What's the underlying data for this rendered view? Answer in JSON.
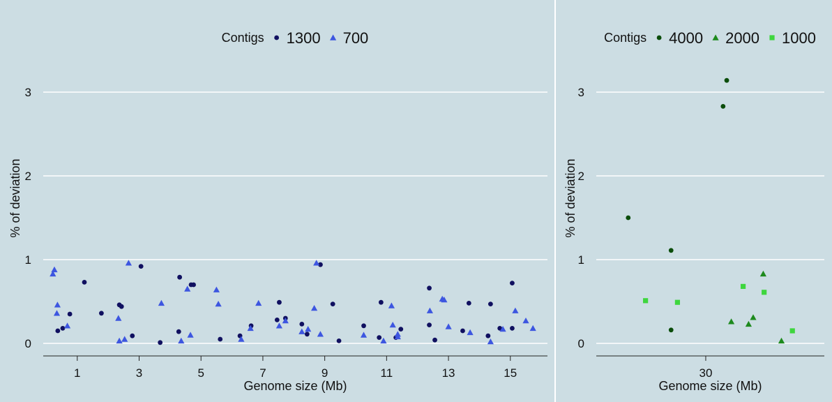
{
  "chart_data": [
    {
      "type": "scatter",
      "xlabel": "Genome size (Mb)",
      "ylabel": "% of deviation",
      "legend_title": "Contigs",
      "legend_position": "top-center",
      "grid": "horizontal",
      "xlim": [
        -0.1,
        16.2
      ],
      "ylim": [
        -0.15,
        3.45
      ],
      "xticks": [
        1,
        3,
        5,
        7,
        9,
        11,
        13,
        15
      ],
      "yticks": [
        0,
        1,
        2,
        3
      ],
      "series": [
        {
          "name": "1300",
          "marker": "circle",
          "color": "#101060",
          "points": [
            [
              0.37,
              0.15
            ],
            [
              0.53,
              0.18
            ],
            [
              0.76,
              0.35
            ],
            [
              1.23,
              0.73
            ],
            [
              1.78,
              0.36
            ],
            [
              2.36,
              0.46
            ],
            [
              2.43,
              0.44
            ],
            [
              2.78,
              0.09
            ],
            [
              3.06,
              0.92
            ],
            [
              3.68,
              0.01
            ],
            [
              4.28,
              0.14
            ],
            [
              4.31,
              0.79
            ],
            [
              4.68,
              0.7
            ],
            [
              4.76,
              0.7
            ],
            [
              5.62,
              0.05
            ],
            [
              6.26,
              0.09
            ],
            [
              6.62,
              0.21
            ],
            [
              7.53,
              0.49
            ],
            [
              7.46,
              0.28
            ],
            [
              7.73,
              0.3
            ],
            [
              8.26,
              0.23
            ],
            [
              8.43,
              0.11
            ],
            [
              8.86,
              0.94
            ],
            [
              9.26,
              0.47
            ],
            [
              9.46,
              0.03
            ],
            [
              10.26,
              0.21
            ],
            [
              10.76,
              0.07
            ],
            [
              10.82,
              0.49
            ],
            [
              11.3,
              0.07
            ],
            [
              11.46,
              0.17
            ],
            [
              12.38,
              0.66
            ],
            [
              12.38,
              0.22
            ],
            [
              12.56,
              0.04
            ],
            [
              13.46,
              0.15
            ],
            [
              13.66,
              0.48
            ],
            [
              14.28,
              0.09
            ],
            [
              14.36,
              0.47
            ],
            [
              14.66,
              0.18
            ],
            [
              15.06,
              0.72
            ],
            [
              15.06,
              0.18
            ]
          ]
        },
        {
          "name": "700",
          "marker": "triangle",
          "color": "#3d56e0",
          "points": [
            [
              0.21,
              0.83
            ],
            [
              0.26,
              0.88
            ],
            [
              0.34,
              0.36
            ],
            [
              0.36,
              0.46
            ],
            [
              0.68,
              0.21
            ],
            [
              2.33,
              0.3
            ],
            [
              2.36,
              0.03
            ],
            [
              2.53,
              0.05
            ],
            [
              2.66,
              0.96
            ],
            [
              3.72,
              0.48
            ],
            [
              4.36,
              0.03
            ],
            [
              4.56,
              0.65
            ],
            [
              4.66,
              0.1
            ],
            [
              5.5,
              0.64
            ],
            [
              5.56,
              0.47
            ],
            [
              6.3,
              0.05
            ],
            [
              6.6,
              0.18
            ],
            [
              6.86,
              0.48
            ],
            [
              7.53,
              0.21
            ],
            [
              7.73,
              0.27
            ],
            [
              8.26,
              0.14
            ],
            [
              8.46,
              0.17
            ],
            [
              8.66,
              0.42
            ],
            [
              8.73,
              0.96
            ],
            [
              8.86,
              0.11
            ],
            [
              10.26,
              0.1
            ],
            [
              10.9,
              0.03
            ],
            [
              11.2,
              0.22
            ],
            [
              11.16,
              0.45
            ],
            [
              11.36,
              0.08
            ],
            [
              11.36,
              0.11
            ],
            [
              12.4,
              0.39
            ],
            [
              12.8,
              0.53
            ],
            [
              12.86,
              0.52
            ],
            [
              13.0,
              0.2
            ],
            [
              13.7,
              0.13
            ],
            [
              14.36,
              0.02
            ],
            [
              14.76,
              0.17
            ],
            [
              15.16,
              0.39
            ],
            [
              15.5,
              0.27
            ],
            [
              15.73,
              0.18
            ]
          ]
        }
      ]
    },
    {
      "type": "scatter",
      "xlabel": "Genome size (Mb)",
      "ylabel": "% of deviation",
      "legend_title": "Contigs",
      "legend_position": "top-center",
      "grid": "horizontal",
      "xlim": [
        18.0,
        43.0
      ],
      "ylim": [
        -0.15,
        3.45
      ],
      "xticks": [
        30
      ],
      "yticks": [
        0,
        1,
        2,
        3
      ],
      "series": [
        {
          "name": "4000",
          "marker": "circle",
          "color": "#0b4d0b",
          "points": [
            [
              21.5,
              1.5
            ],
            [
              26.2,
              1.11
            ],
            [
              26.2,
              0.16
            ],
            [
              31.9,
              2.83
            ],
            [
              32.3,
              3.14
            ]
          ]
        },
        {
          "name": "2000",
          "marker": "triangle",
          "color": "#1d8a1d",
          "points": [
            [
              32.8,
              0.26
            ],
            [
              34.7,
              0.23
            ],
            [
              35.2,
              0.31
            ],
            [
              36.3,
              0.83
            ],
            [
              38.3,
              0.03
            ]
          ]
        },
        {
          "name": "1000",
          "marker": "square",
          "color": "#3ed63e",
          "points": [
            [
              23.4,
              0.51
            ],
            [
              26.9,
              0.49
            ],
            [
              34.1,
              0.68
            ],
            [
              36.4,
              0.61
            ],
            [
              39.5,
              0.15
            ]
          ]
        }
      ]
    }
  ]
}
